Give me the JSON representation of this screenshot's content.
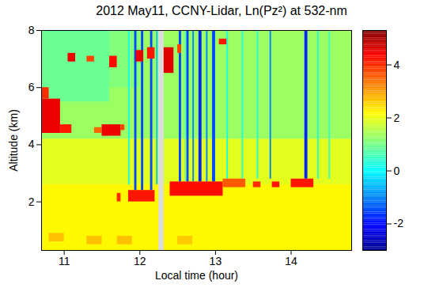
{
  "chart_data": {
    "type": "heatmap",
    "title": "2012 May11, CCNY-Lidar, Ln(Pz²) at 532-nm",
    "x_label": "Local time (hour)",
    "y_label": "Altitude (km)",
    "xlim": [
      10.7,
      14.8
    ],
    "ylim": [
      0.3,
      8
    ],
    "xticks": [
      11,
      12,
      13,
      14
    ],
    "yticks": [
      2,
      4,
      6,
      8
    ],
    "color": "jet",
    "colorbar": {
      "lim": [
        -3,
        5.3
      ],
      "ticks": [
        -2,
        0,
        2,
        4
      ]
    },
    "cells": [
      {
        "x": [
          10.7,
          12.25
        ],
        "y": [
          0.3,
          2.6
        ],
        "value": 2.2
      },
      {
        "x": [
          12.32,
          14.8
        ],
        "y": [
          0.3,
          2.6
        ],
        "value": 2.2
      },
      {
        "x": [
          10.7,
          12.25
        ],
        "y": [
          2.6,
          4.2
        ],
        "value": 1.9
      },
      {
        "x": [
          12.32,
          14.8
        ],
        "y": [
          2.6,
          4.2
        ],
        "value": 1.9
      },
      {
        "x": [
          10.7,
          12.25
        ],
        "y": [
          4.2,
          8
        ],
        "value": 1.3
      },
      {
        "x": [
          12.32,
          14.8
        ],
        "y": [
          4.2,
          8
        ],
        "value": 1.3
      },
      {
        "x": [
          10.7,
          11.6
        ],
        "y": [
          5.5,
          8
        ],
        "value": 0.9
      },
      {
        "x": [
          11.6,
          12.0
        ],
        "y": [
          6.0,
          8
        ],
        "value": 1.1
      },
      {
        "x": [
          10.8,
          11.0
        ],
        "y": [
          0.6,
          0.9
        ],
        "value": 2.7
      },
      {
        "x": [
          11.3,
          11.5
        ],
        "y": [
          0.5,
          0.8
        ],
        "value": 2.7
      },
      {
        "x": [
          11.7,
          11.9
        ],
        "y": [
          0.5,
          0.8
        ],
        "value": 2.7
      },
      {
        "x": [
          12.5,
          12.7
        ],
        "y": [
          0.5,
          0.8
        ],
        "value": 2.6
      },
      {
        "x": [
          11.85,
          11.87
        ],
        "y": [
          2.6,
          8
        ],
        "value": 0.2
      },
      {
        "x": [
          11.93,
          11.96
        ],
        "y": [
          2.4,
          8
        ],
        "value": -1.5
      },
      {
        "x": [
          12.02,
          12.05
        ],
        "y": [
          2.4,
          8
        ],
        "value": -1.5
      },
      {
        "x": [
          12.14,
          12.17
        ],
        "y": [
          2.4,
          8
        ],
        "value": -1.5
      },
      {
        "x": [
          12.22,
          12.24
        ],
        "y": [
          2.6,
          8
        ],
        "value": -0.5
      },
      {
        "x": [
          12.52,
          12.55
        ],
        "y": [
          2.7,
          8
        ],
        "value": -1.5
      },
      {
        "x": [
          12.6,
          12.61
        ],
        "y": [
          2.7,
          8
        ],
        "value": 0.0
      },
      {
        "x": [
          12.62,
          12.65
        ],
        "y": [
          2.7,
          8
        ],
        "value": -1.5
      },
      {
        "x": [
          12.7,
          12.72
        ],
        "y": [
          2.7,
          8
        ],
        "value": -1.0
      },
      {
        "x": [
          12.78,
          12.82
        ],
        "y": [
          2.7,
          8
        ],
        "value": -1.8
      },
      {
        "x": [
          12.88,
          12.9
        ],
        "y": [
          2.7,
          8
        ],
        "value": -1.0
      },
      {
        "x": [
          12.96,
          13.0
        ],
        "y": [
          2.7,
          8
        ],
        "value": -1.5
      },
      {
        "x": [
          13.15,
          13.17
        ],
        "y": [
          2.8,
          8
        ],
        "value": 0.2
      },
      {
        "x": [
          13.35,
          13.37
        ],
        "y": [
          2.8,
          8
        ],
        "value": 0.3
      },
      {
        "x": [
          13.55,
          13.57
        ],
        "y": [
          2.8,
          8
        ],
        "value": 0.3
      },
      {
        "x": [
          13.72,
          13.74
        ],
        "y": [
          2.8,
          8
        ],
        "value": -1.0
      },
      {
        "x": [
          14.18,
          14.22
        ],
        "y": [
          2.8,
          8
        ],
        "value": -1.8
      },
      {
        "x": [
          14.35,
          14.37
        ],
        "y": [
          2.8,
          8
        ],
        "value": 0.3
      },
      {
        "x": [
          14.5,
          14.52
        ],
        "y": [
          2.8,
          8
        ],
        "value": 0.5
      },
      {
        "x": [
          10.7,
          10.95
        ],
        "y": [
          4.4,
          5.6
        ],
        "value": 4.5
      },
      {
        "x": [
          10.7,
          10.8
        ],
        "y": [
          5.6,
          6.0
        ],
        "value": 4.0
      },
      {
        "x": [
          10.95,
          11.1
        ],
        "y": [
          4.4,
          4.7
        ],
        "value": 4.2
      },
      {
        "x": [
          11.05,
          11.15
        ],
        "y": [
          6.9,
          7.2
        ],
        "value": 4.5
      },
      {
        "x": [
          11.4,
          11.5
        ],
        "y": [
          4.4,
          4.6
        ],
        "value": 3.5
      },
      {
        "x": [
          11.5,
          11.75
        ],
        "y": [
          4.3,
          4.7
        ],
        "value": 4.5
      },
      {
        "x": [
          11.75,
          11.8
        ],
        "y": [
          4.5,
          4.7
        ],
        "value": 3.8
      },
      {
        "x": [
          11.3,
          11.4
        ],
        "y": [
          6.9,
          7.1
        ],
        "value": 3.8
      },
      {
        "x": [
          11.6,
          11.7
        ],
        "y": [
          6.7,
          7.1
        ],
        "value": 4.3
      },
      {
        "x": [
          11.95,
          12.05
        ],
        "y": [
          6.9,
          7.3
        ],
        "value": 4.5
      },
      {
        "x": [
          12.1,
          12.2
        ],
        "y": [
          7.0,
          7.4
        ],
        "value": 4.2
      },
      {
        "x": [
          12.32,
          12.45
        ],
        "y": [
          6.5,
          7.4
        ],
        "value": 4.6
      },
      {
        "x": [
          12.5,
          12.55
        ],
        "y": [
          7.2,
          7.5
        ],
        "value": 3.8
      },
      {
        "x": [
          13.05,
          13.15
        ],
        "y": [
          7.5,
          7.7
        ],
        "value": 4.2
      },
      {
        "x": [
          11.7,
          11.75
        ],
        "y": [
          2.0,
          2.3
        ],
        "value": 4.0
      },
      {
        "x": [
          11.85,
          12.2
        ],
        "y": [
          2.0,
          2.4
        ],
        "value": 4.2
      },
      {
        "x": [
          12.4,
          13.1
        ],
        "y": [
          2.2,
          2.7
        ],
        "value": 4.3
      },
      {
        "x": [
          13.1,
          13.4
        ],
        "y": [
          2.5,
          2.8
        ],
        "value": 3.6
      },
      {
        "x": [
          13.5,
          13.6
        ],
        "y": [
          2.5,
          2.7
        ],
        "value": 4.0
      },
      {
        "x": [
          13.75,
          13.85
        ],
        "y": [
          2.5,
          2.7
        ],
        "value": 4.2
      },
      {
        "x": [
          14.0,
          14.3
        ],
        "y": [
          2.5,
          2.8
        ],
        "value": 4.2
      }
    ]
  }
}
